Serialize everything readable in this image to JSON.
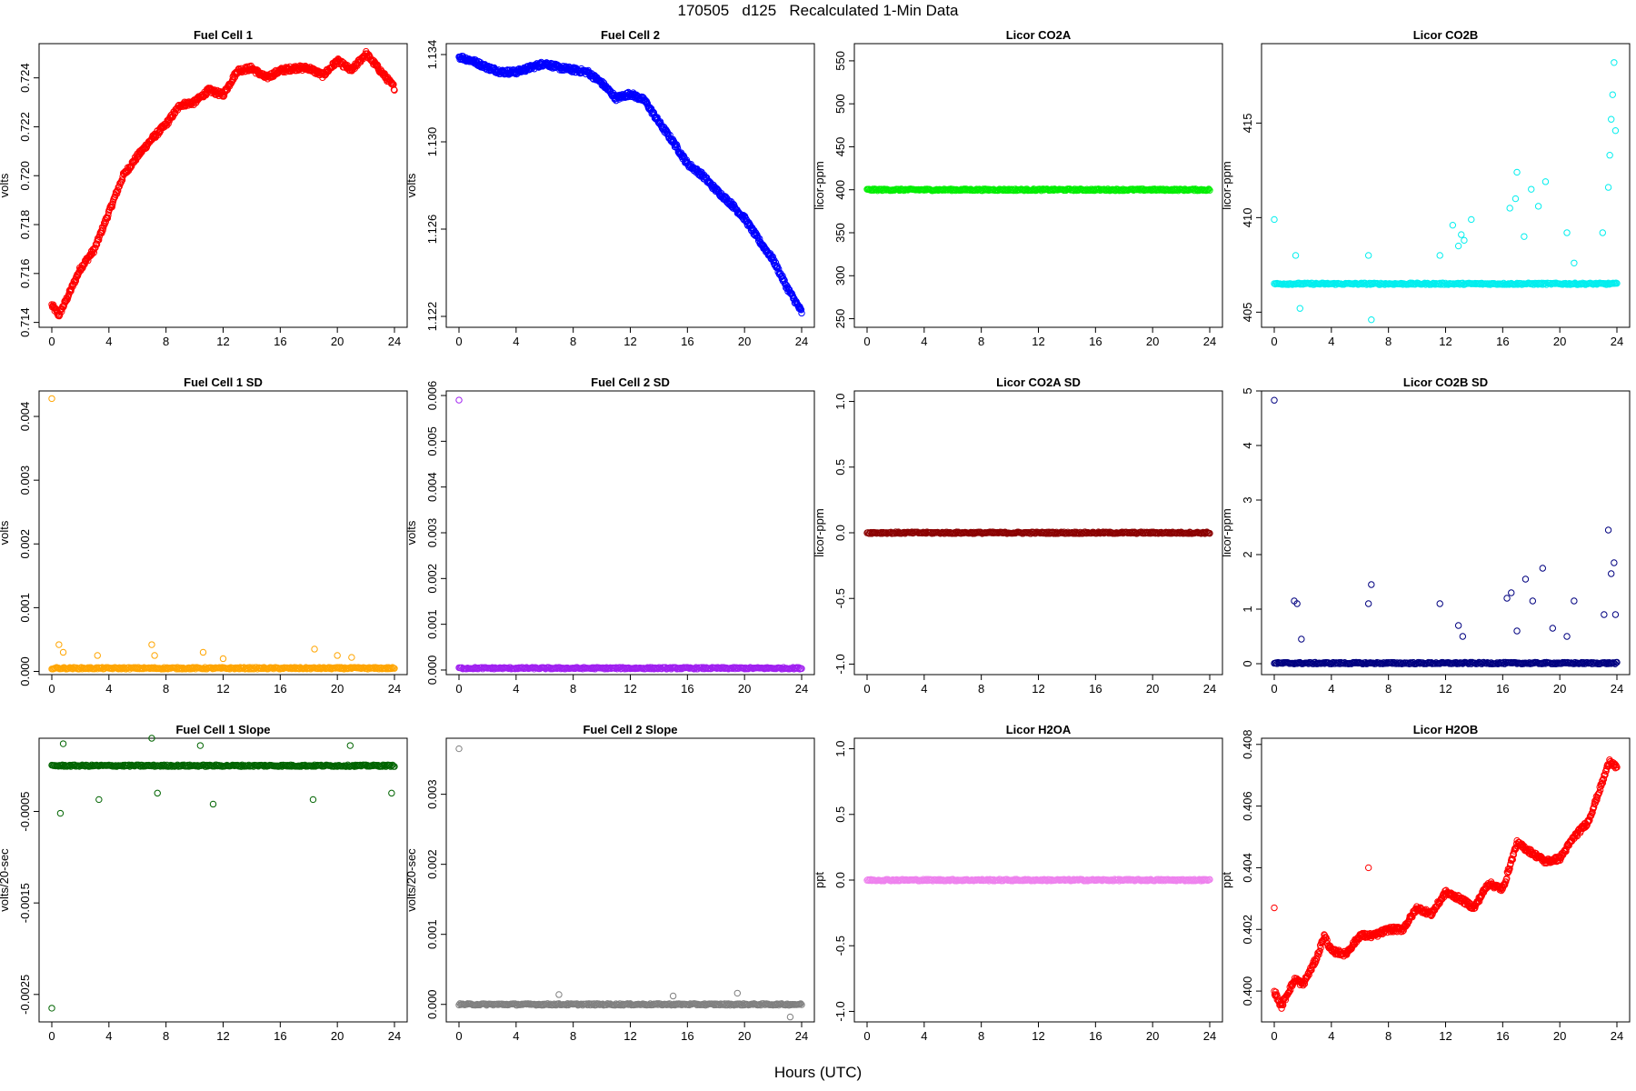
{
  "figure": {
    "title": "170505   d125   Recalculated 1-Min Data",
    "xlabel": "Hours (UTC)"
  },
  "chart_data": [
    {
      "type": "scatter",
      "title": "Fuel Cell 1",
      "ylabel": "volts",
      "color": "#ff0000",
      "xlim": [
        0,
        24
      ],
      "ylim": [
        0.7138,
        0.7254
      ],
      "xticks": [
        "0",
        "4",
        "8",
        "12",
        "16",
        "20",
        "24"
      ],
      "yticks": [
        "0.714",
        "0.716",
        "0.718",
        "0.720",
        "0.722",
        "0.724"
      ],
      "series": [
        {
          "x": [
            0,
            0.5,
            1,
            2,
            3,
            4,
            5,
            6,
            7,
            8,
            9,
            10,
            11,
            12,
            13,
            14,
            15,
            16,
            17,
            18,
            19,
            20,
            21,
            22,
            23,
            24
          ],
          "y": [
            0.7147,
            0.7143,
            0.7149,
            0.7162,
            0.717,
            0.7185,
            0.72,
            0.7208,
            0.7215,
            0.7221,
            0.7229,
            0.723,
            0.7235,
            0.7233,
            0.7243,
            0.7244,
            0.724,
            0.7243,
            0.7244,
            0.7244,
            0.7241,
            0.7247,
            0.7243,
            0.725,
            0.7243,
            0.7236
          ]
        }
      ]
    },
    {
      "type": "scatter",
      "title": "Fuel Cell 2",
      "ylabel": "volts",
      "color": "#0000ff",
      "xlim": [
        0,
        24
      ],
      "ylim": [
        1.1215,
        1.1345
      ],
      "xticks": [
        "0",
        "4",
        "8",
        "12",
        "16",
        "20",
        "24"
      ],
      "yticks": [
        "1.122",
        "1.126",
        "1.130",
        "1.134"
      ],
      "series": [
        {
          "x": [
            0,
            1,
            2,
            3,
            4,
            5,
            6,
            7,
            8,
            9,
            10,
            11,
            12,
            13,
            14,
            15,
            16,
            17,
            18,
            19,
            20,
            21,
            22,
            23,
            24
          ],
          "y": [
            1.1339,
            1.1337,
            1.1334,
            1.1332,
            1.1332,
            1.1334,
            1.1336,
            1.1334,
            1.1333,
            1.1332,
            1.1327,
            1.132,
            1.1322,
            1.1319,
            1.1309,
            1.13,
            1.129,
            1.1285,
            1.1278,
            1.1272,
            1.1265,
            1.1255,
            1.1246,
            1.1233,
            1.1222
          ]
        }
      ]
    },
    {
      "type": "scatter",
      "title": "Licor CO2A",
      "ylabel": "licor-ppm",
      "color": "#00ee00",
      "xlim": [
        0,
        24
      ],
      "ylim": [
        240,
        570
      ],
      "xticks": [
        "0",
        "4",
        "8",
        "12",
        "16",
        "20",
        "24"
      ],
      "yticks": [
        "250",
        "300",
        "350",
        "400",
        "450",
        "500",
        "550"
      ],
      "series": [
        {
          "x": [
            0,
            24
          ],
          "y": [
            400,
            400
          ],
          "style": "dense"
        }
      ]
    },
    {
      "type": "scatter",
      "title": "Licor CO2B",
      "ylabel": "licor-ppm",
      "color": "#00eeee",
      "xlim": [
        0,
        24
      ],
      "ylim": [
        404.2,
        419.2
      ],
      "xticks": [
        "0",
        "4",
        "8",
        "12",
        "16",
        "20",
        "24"
      ],
      "yticks": [
        "405",
        "410",
        "415"
      ],
      "series": [
        {
          "x": [
            0,
            24
          ],
          "y": [
            406.5,
            406.5
          ],
          "style": "dense"
        },
        {
          "x": [
            0,
            1.5,
            1.8,
            6.6,
            6.8,
            11.6,
            12.5,
            12.9,
            13.1,
            13.3,
            13.8,
            16.5,
            16.9,
            17.0,
            17.5,
            18.0,
            18.5,
            19.0,
            20.5,
            21.0,
            23.0,
            23.4,
            23.5,
            23.6,
            23.7,
            23.8,
            23.9
          ],
          "y": [
            409.9,
            408.0,
            405.2,
            408.0,
            404.6,
            408.0,
            409.6,
            408.5,
            409.1,
            408.8,
            409.9,
            410.5,
            411.0,
            412.4,
            409.0,
            411.5,
            410.6,
            411.9,
            409.2,
            407.6,
            409.2,
            411.6,
            413.3,
            415.2,
            416.5,
            418.2,
            414.6
          ]
        }
      ]
    },
    {
      "type": "scatter",
      "title": "Fuel Cell 1 SD",
      "ylabel": "volts",
      "color": "#ffa500",
      "xlim": [
        0,
        24
      ],
      "ylim": [
        -5e-05,
        0.0044
      ],
      "xticks": [
        "0",
        "4",
        "8",
        "12",
        "16",
        "20",
        "24"
      ],
      "yticks": [
        "0.000",
        "0.001",
        "0.002",
        "0.003",
        "0.004"
      ],
      "series": [
        {
          "x": [
            0,
            24
          ],
          "y": [
            5e-05,
            5e-05
          ],
          "style": "dense"
        },
        {
          "x": [
            0,
            0.5,
            0.8,
            3.2,
            7.0,
            7.2,
            10.6,
            12.0,
            18.4,
            20.0,
            21.0
          ],
          "y": [
            0.00428,
            0.00042,
            0.0003,
            0.00025,
            0.00042,
            0.00025,
            0.0003,
            0.0002,
            0.00035,
            0.00025,
            0.00022
          ]
        }
      ]
    },
    {
      "type": "scatter",
      "title": "Fuel Cell 2 SD",
      "ylabel": "volts",
      "color": "#a020f0",
      "xlim": [
        0,
        24
      ],
      "ylim": [
        -0.0001,
        0.0061
      ],
      "xticks": [
        "0",
        "4",
        "8",
        "12",
        "16",
        "20",
        "24"
      ],
      "yticks": [
        "0.000",
        "0.001",
        "0.002",
        "0.003",
        "0.004",
        "0.005",
        "0.006"
      ],
      "series": [
        {
          "x": [
            0,
            24
          ],
          "y": [
            4e-05,
            4e-05
          ],
          "style": "dense"
        },
        {
          "x": [
            0
          ],
          "y": [
            0.0059
          ]
        }
      ]
    },
    {
      "type": "scatter",
      "title": "Licor CO2A SD",
      "ylabel": "licor-ppm",
      "color": "#8b0000",
      "xlim": [
        0,
        24
      ],
      "ylim": [
        -1.08,
        1.08
      ],
      "xticks": [
        "0",
        "4",
        "8",
        "12",
        "16",
        "20",
        "24"
      ],
      "yticks": [
        "-1.0",
        "-0.5",
        "0.0",
        "0.5",
        "1.0"
      ],
      "series": [
        {
          "x": [
            0,
            24
          ],
          "y": [
            0,
            0
          ],
          "style": "dense"
        }
      ]
    },
    {
      "type": "scatter",
      "title": "Licor CO2B SD",
      "ylabel": "licor-ppm",
      "color": "#000080",
      "xlim": [
        0,
        24
      ],
      "ylim": [
        -0.2,
        5.0
      ],
      "xticks": [
        "0",
        "4",
        "8",
        "12",
        "16",
        "20",
        "24"
      ],
      "yticks": [
        "0",
        "1",
        "2",
        "3",
        "4",
        "5"
      ],
      "series": [
        {
          "x": [
            0,
            24
          ],
          "y": [
            0.01,
            0.01
          ],
          "style": "dense"
        },
        {
          "x": [
            0,
            1.4,
            1.6,
            1.9,
            6.6,
            6.8,
            11.6,
            12.9,
            13.2,
            16.3,
            16.6,
            17.0,
            17.6,
            18.1,
            18.8,
            19.5,
            20.5,
            21.0,
            23.1,
            23.4,
            23.6,
            23.8,
            23.9
          ],
          "y": [
            4.83,
            1.15,
            1.1,
            0.45,
            1.1,
            1.45,
            1.1,
            0.7,
            0.5,
            1.2,
            1.3,
            0.6,
            1.55,
            1.15,
            1.75,
            0.65,
            0.5,
            1.15,
            0.9,
            2.45,
            1.65,
            1.85,
            0.9
          ]
        }
      ]
    },
    {
      "type": "scatter",
      "title": "Fuel Cell 1 Slope",
      "ylabel": "volts/20-sec",
      "color": "#006400",
      "xlim": [
        0,
        24
      ],
      "ylim": [
        -0.0028,
        0.0003
      ],
      "xticks": [
        "0",
        "4",
        "8",
        "12",
        "16",
        "20",
        "24"
      ],
      "yticks": [
        "-0.0025",
        "-0.0015",
        "-0.0005"
      ],
      "series": [
        {
          "x": [
            0,
            24
          ],
          "y": [
            0,
            0
          ],
          "style": "dense"
        },
        {
          "x": [
            0,
            0.6,
            0.8,
            3.3,
            7.0,
            7.4,
            11.3,
            10.4,
            18.3,
            20.9,
            23.8
          ],
          "y": [
            -0.00265,
            -0.00052,
            0.00024,
            -0.00037,
            0.0003,
            -0.0003,
            -0.00042,
            0.00022,
            -0.00037,
            0.00022,
            -0.0003
          ]
        }
      ]
    },
    {
      "type": "scatter",
      "title": "Fuel Cell 2 Slope",
      "ylabel": "volts/20-sec",
      "color": "#808080",
      "xlim": [
        0,
        24
      ],
      "ylim": [
        -0.00025,
        0.0038
      ],
      "xticks": [
        "0",
        "4",
        "8",
        "12",
        "16",
        "20",
        "24"
      ],
      "yticks": [
        "0.000",
        "0.001",
        "0.002",
        "0.003"
      ],
      "series": [
        {
          "x": [
            0,
            24
          ],
          "y": [
            0,
            0
          ],
          "style": "dense"
        },
        {
          "x": [
            0,
            7,
            15,
            19.5,
            23.2
          ],
          "y": [
            0.00365,
            0.00014,
            0.00012,
            0.00016,
            -0.00018
          ]
        }
      ]
    },
    {
      "type": "scatter",
      "title": "Licor H2OA",
      "ylabel": "ppt",
      "color": "#ee82ee",
      "xlim": [
        0,
        24
      ],
      "ylim": [
        -1.08,
        1.08
      ],
      "xticks": [
        "0",
        "4",
        "8",
        "12",
        "16",
        "20",
        "24"
      ],
      "yticks": [
        "-1.0",
        "-0.5",
        "0.0",
        "0.5",
        "1.0"
      ],
      "series": [
        {
          "x": [
            0,
            24
          ],
          "y": [
            0,
            0
          ],
          "style": "dense"
        }
      ]
    },
    {
      "type": "scatter",
      "title": "Licor H2OB",
      "ylabel": "ppt",
      "color": "#ff0000",
      "xlim": [
        0,
        24
      ],
      "ylim": [
        0.399,
        0.4082
      ],
      "xticks": [
        "0",
        "4",
        "8",
        "12",
        "16",
        "20",
        "24"
      ],
      "yticks": [
        "0.400",
        "0.402",
        "0.404",
        "0.406",
        "0.408"
      ],
      "series": [
        {
          "x": [
            0,
            0.5,
            1,
            1.5,
            2,
            3,
            3.5,
            4,
            5,
            6,
            7,
            8,
            9,
            10,
            11,
            12,
            13,
            14,
            15,
            16,
            17,
            18,
            19,
            20,
            21,
            22,
            23,
            23.5,
            24
          ],
          "y": [
            0.4,
            0.3995,
            0.4,
            0.4004,
            0.4002,
            0.4011,
            0.4018,
            0.4013,
            0.4012,
            0.4018,
            0.4018,
            0.402,
            0.402,
            0.4027,
            0.4025,
            0.4032,
            0.403,
            0.4027,
            0.4035,
            0.4033,
            0.4048,
            0.4045,
            0.4042,
            0.4043,
            0.405,
            0.4055,
            0.4068,
            0.4075,
            0.4072
          ]
        },
        {
          "x": [
            0,
            6.6
          ],
          "y": [
            0.4027,
            0.404
          ]
        }
      ]
    }
  ]
}
